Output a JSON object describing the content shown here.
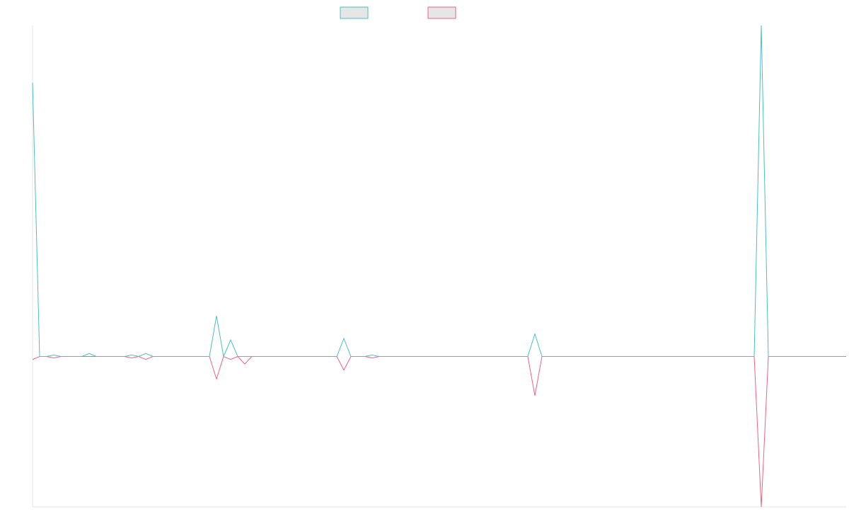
{
  "chart_data": {
    "type": "line",
    "title": "",
    "xlabel": "",
    "ylabel": "",
    "grid": false,
    "legend_position": "top-center",
    "x_count": 116,
    "ylim": [
      -1.0,
      2.2
    ],
    "series": [
      {
        "name": "",
        "color": "#4bc0c0",
        "fill": "#e6e6e6",
        "points": [
          [
            0,
            1.82
          ],
          [
            1,
            0
          ],
          [
            2,
            0
          ],
          [
            3,
            0.01
          ],
          [
            4,
            0
          ],
          [
            5,
            0
          ],
          [
            6,
            0
          ],
          [
            7,
            0
          ],
          [
            8,
            0.02
          ],
          [
            9,
            0
          ],
          [
            10,
            0
          ],
          [
            11,
            0
          ],
          [
            12,
            0
          ],
          [
            13,
            0
          ],
          [
            14,
            0.01
          ],
          [
            15,
            0
          ],
          [
            16,
            0.02
          ],
          [
            17,
            0
          ],
          [
            18,
            0
          ],
          [
            19,
            0
          ],
          [
            20,
            0
          ],
          [
            21,
            0
          ],
          [
            22,
            0
          ],
          [
            23,
            0
          ],
          [
            24,
            0
          ],
          [
            25,
            0
          ],
          [
            26,
            0.27
          ],
          [
            27,
            0
          ],
          [
            28,
            0.11
          ],
          [
            29,
            0
          ],
          [
            30,
            0
          ],
          [
            31,
            0
          ],
          [
            32,
            0
          ],
          [
            33,
            0
          ],
          [
            34,
            0
          ],
          [
            35,
            0
          ],
          [
            36,
            0
          ],
          [
            37,
            0
          ],
          [
            38,
            0
          ],
          [
            39,
            0
          ],
          [
            40,
            0
          ],
          [
            41,
            0
          ],
          [
            42,
            0
          ],
          [
            43,
            0
          ],
          [
            44,
            0.12
          ],
          [
            45,
            0
          ],
          [
            46,
            0
          ],
          [
            47,
            0
          ],
          [
            48,
            0.01
          ],
          [
            49,
            0
          ],
          [
            50,
            0
          ],
          [
            51,
            0
          ],
          [
            52,
            0
          ],
          [
            53,
            0
          ],
          [
            54,
            0
          ],
          [
            55,
            0
          ],
          [
            56,
            0
          ],
          [
            57,
            0
          ],
          [
            58,
            0
          ],
          [
            59,
            0
          ],
          [
            60,
            0
          ],
          [
            61,
            0
          ],
          [
            62,
            0
          ],
          [
            63,
            0
          ],
          [
            64,
            0
          ],
          [
            65,
            0
          ],
          [
            66,
            0
          ],
          [
            67,
            0
          ],
          [
            68,
            0
          ],
          [
            69,
            0
          ],
          [
            70,
            0
          ],
          [
            71,
            0.15
          ],
          [
            72,
            0
          ],
          [
            73,
            0
          ],
          [
            74,
            0
          ],
          [
            75,
            0
          ],
          [
            76,
            0
          ],
          [
            77,
            0
          ],
          [
            78,
            0
          ],
          [
            79,
            0
          ],
          [
            80,
            0
          ],
          [
            81,
            0
          ],
          [
            82,
            0
          ],
          [
            83,
            0
          ],
          [
            84,
            0
          ],
          [
            85,
            0
          ],
          [
            86,
            0
          ],
          [
            87,
            0
          ],
          [
            88,
            0
          ],
          [
            89,
            0
          ],
          [
            90,
            0
          ],
          [
            91,
            0
          ],
          [
            92,
            0
          ],
          [
            93,
            0
          ],
          [
            94,
            0
          ],
          [
            95,
            0
          ],
          [
            96,
            0
          ],
          [
            97,
            0
          ],
          [
            98,
            0
          ],
          [
            99,
            0
          ],
          [
            100,
            0
          ],
          [
            101,
            0
          ],
          [
            102,
            0
          ],
          [
            103,
            2.2
          ],
          [
            104,
            0
          ],
          [
            105,
            0
          ],
          [
            106,
            0
          ],
          [
            107,
            0
          ],
          [
            108,
            0
          ],
          [
            109,
            0
          ],
          [
            110,
            0
          ],
          [
            111,
            0
          ],
          [
            112,
            0
          ],
          [
            113,
            0
          ],
          [
            114,
            0
          ],
          [
            115,
            0
          ]
        ]
      },
      {
        "name": "",
        "color": "#f06283",
        "fill": "#e6e6e6",
        "points": [
          [
            0,
            -0.02
          ],
          [
            1,
            0
          ],
          [
            2,
            0
          ],
          [
            3,
            -0.01
          ],
          [
            4,
            0
          ],
          [
            5,
            0
          ],
          [
            6,
            0
          ],
          [
            7,
            0
          ],
          [
            8,
            0
          ],
          [
            9,
            0
          ],
          [
            10,
            0
          ],
          [
            11,
            0
          ],
          [
            12,
            0
          ],
          [
            13,
            0
          ],
          [
            14,
            -0.01
          ],
          [
            15,
            0
          ],
          [
            16,
            -0.02
          ],
          [
            17,
            0
          ],
          [
            18,
            0
          ],
          [
            19,
            0
          ],
          [
            20,
            0
          ],
          [
            21,
            0
          ],
          [
            22,
            0
          ],
          [
            23,
            0
          ],
          [
            24,
            0
          ],
          [
            25,
            0
          ],
          [
            26,
            -0.15
          ],
          [
            27,
            0
          ],
          [
            28,
            -0.02
          ],
          [
            29,
            0
          ],
          [
            30,
            -0.05
          ],
          [
            31,
            0
          ],
          [
            32,
            0
          ],
          [
            33,
            0
          ],
          [
            34,
            0
          ],
          [
            35,
            0
          ],
          [
            36,
            0
          ],
          [
            37,
            0
          ],
          [
            38,
            0
          ],
          [
            39,
            0
          ],
          [
            40,
            0
          ],
          [
            41,
            0
          ],
          [
            42,
            0
          ],
          [
            43,
            0
          ],
          [
            44,
            -0.09
          ],
          [
            45,
            0
          ],
          [
            46,
            0
          ],
          [
            47,
            0
          ],
          [
            48,
            -0.01
          ],
          [
            49,
            0
          ],
          [
            50,
            0
          ],
          [
            51,
            0
          ],
          [
            52,
            0
          ],
          [
            53,
            0
          ],
          [
            54,
            0
          ],
          [
            55,
            0
          ],
          [
            56,
            0
          ],
          [
            57,
            0
          ],
          [
            58,
            0
          ],
          [
            59,
            0
          ],
          [
            60,
            0
          ],
          [
            61,
            0
          ],
          [
            62,
            0
          ],
          [
            63,
            0
          ],
          [
            64,
            0
          ],
          [
            65,
            0
          ],
          [
            66,
            0
          ],
          [
            67,
            0
          ],
          [
            68,
            0
          ],
          [
            69,
            0
          ],
          [
            70,
            0
          ],
          [
            71,
            -0.26
          ],
          [
            72,
            0
          ],
          [
            73,
            0
          ],
          [
            74,
            0
          ],
          [
            75,
            0
          ],
          [
            76,
            0
          ],
          [
            77,
            0
          ],
          [
            78,
            0
          ],
          [
            79,
            0
          ],
          [
            80,
            0
          ],
          [
            81,
            0
          ],
          [
            82,
            0
          ],
          [
            83,
            0
          ],
          [
            84,
            0
          ],
          [
            85,
            0
          ],
          [
            86,
            0
          ],
          [
            87,
            0
          ],
          [
            88,
            0
          ],
          [
            89,
            0
          ],
          [
            90,
            0
          ],
          [
            91,
            0
          ],
          [
            92,
            0
          ],
          [
            93,
            0
          ],
          [
            94,
            0
          ],
          [
            95,
            0
          ],
          [
            96,
            0
          ],
          [
            97,
            0
          ],
          [
            98,
            0
          ],
          [
            99,
            0
          ],
          [
            100,
            0
          ],
          [
            101,
            0
          ],
          [
            102,
            0
          ],
          [
            103,
            -1.0
          ],
          [
            104,
            0
          ],
          [
            105,
            0
          ],
          [
            106,
            0
          ],
          [
            107,
            0
          ],
          [
            108,
            0
          ],
          [
            109,
            0
          ],
          [
            110,
            0
          ],
          [
            111,
            0
          ],
          [
            112,
            0
          ],
          [
            113,
            0
          ],
          [
            114,
            0
          ],
          [
            115,
            0
          ]
        ]
      }
    ]
  }
}
